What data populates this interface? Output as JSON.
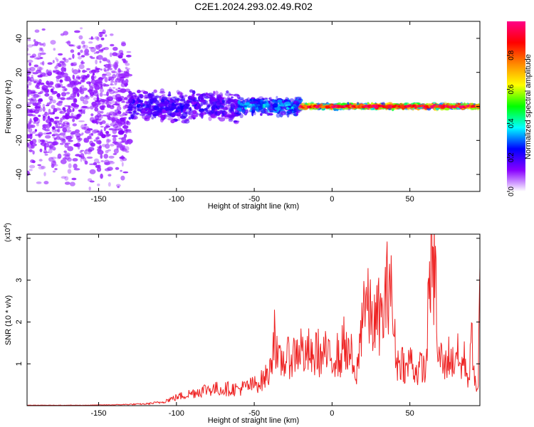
{
  "figure": {
    "title": "C2E1.2024.293.02.49.R02"
  },
  "chart_data": [
    {
      "type": "heatmap",
      "xlabel": "Height of straight line (km)",
      "ylabel": "Frequency (Hz)",
      "xlim": [
        -196,
        95
      ],
      "ylim": [
        -50,
        50
      ],
      "xticks": [
        -150,
        -100,
        -50,
        0,
        50
      ],
      "xtick_labels": [
        "-150",
        "-100",
        "-50",
        "0",
        "50"
      ],
      "yticks": [
        -40,
        -20,
        0,
        20,
        40
      ],
      "ytick_labels": [
        "-40",
        "-20",
        "0",
        "20",
        "40"
      ],
      "grid": false,
      "colorbar": {
        "label": "Normalized spectral amplitude",
        "range": [
          0,
          1
        ],
        "ticks": [
          0.0,
          0.2,
          0.4,
          0.6,
          0.8
        ],
        "tick_labels": [
          "0.0",
          "0.2",
          "0.4",
          "0.6",
          "0.8"
        ],
        "colors": [
          "#ffffff",
          "#8800ff",
          "#0000ff",
          "#00ffff",
          "#00ff00",
          "#ffff00",
          "#ff8800",
          "#ff0000",
          "#ff0088"
        ]
      },
      "structure": [
        {
          "x_range": [
            -196,
            -130
          ],
          "freq_spread_hz": 50,
          "amplitude": 0.05
        },
        {
          "x_range": [
            -130,
            -60
          ],
          "freq_spread_hz": 10,
          "amplitude": 0.15
        },
        {
          "x_range": [
            -60,
            -20
          ],
          "freq_spread_hz": 6,
          "amplitude": 0.3
        },
        {
          "x_range": [
            -20,
            95
          ],
          "freq_spread_hz": 1.5,
          "amplitude": 0.9
        }
      ]
    },
    {
      "type": "line",
      "xlabel": "Height of straight line (km)",
      "ylabel": "SNR (10 * v/v)",
      "y_multiplier_label": "(x10",
      "y_multiplier_exp": "4",
      "y_multiplier_close": ")",
      "xlim": [
        -196,
        95
      ],
      "ylim": [
        0,
        4.1
      ],
      "xticks": [
        -150,
        -100,
        -50,
        0,
        50
      ],
      "xtick_labels": [
        "-150",
        "-100",
        "-50",
        "0",
        "50"
      ],
      "yticks": [
        1,
        2,
        3,
        4
      ],
      "ytick_labels": [
        "1",
        "2",
        "3",
        "4"
      ],
      "grid": false,
      "series": [
        {
          "color": "#ee2222",
          "x": [
            -196,
            -180,
            -160,
            -140,
            -130,
            -120,
            -110,
            -100,
            -90,
            -80,
            -70,
            -60,
            -50,
            -45,
            -40,
            -37,
            -35,
            -30,
            -25,
            -20,
            -17,
            -15,
            -12,
            -10,
            -7,
            -5,
            -2,
            0,
            3,
            5,
            8,
            10,
            12,
            15,
            18,
            20,
            22,
            25,
            28,
            30,
            32,
            35,
            37,
            38,
            40,
            42,
            45,
            48,
            50,
            52,
            55,
            58,
            60,
            62,
            63,
            64,
            65,
            66,
            68,
            70,
            72,
            75,
            78,
            80,
            82,
            85,
            88,
            90,
            92,
            94,
            95
          ],
          "y": [
            0.01,
            0.01,
            0.01,
            0.02,
            0.03,
            0.04,
            0.08,
            0.2,
            0.3,
            0.4,
            0.4,
            0.4,
            0.5,
            0.6,
            0.8,
            1.9,
            1.0,
            1.1,
            1.2,
            1.4,
            1.1,
            1.3,
            1.0,
            1.4,
            1.1,
            1.3,
            1.1,
            1.1,
            1.3,
            1.0,
            1.7,
            1.1,
            1.3,
            0.5,
            1.5,
            2.7,
            2.4,
            2.1,
            1.9,
            2.2,
            2.0,
            2.6,
            3.4,
            2.6,
            1.6,
            1.0,
            1.1,
            0.8,
            1.2,
            0.9,
            0.8,
            1.0,
            0.7,
            2.4,
            3.5,
            4.0,
            2.7,
            3.8,
            1.0,
            1.2,
            0.9,
            1.2,
            1.0,
            1.4,
            0.9,
            1.1,
            0.6,
            1.7,
            0.5,
            0.4,
            3.3
          ]
        }
      ]
    }
  ]
}
